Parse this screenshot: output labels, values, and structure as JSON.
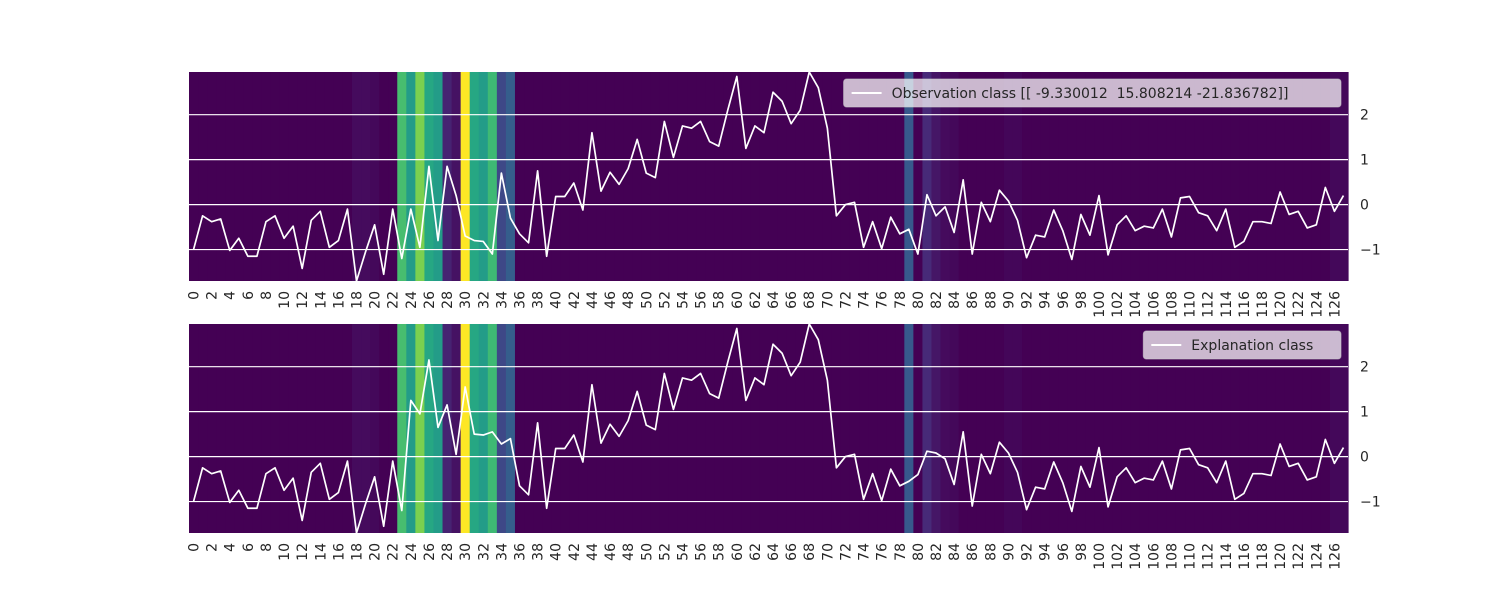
{
  "chart_data": [
    {
      "type": "line",
      "subtype": "line-over-heatmap",
      "panel": "top",
      "legend": {
        "label": "Observation class [[ -9.330012  15.808214 -21.836782]]",
        "location": "top-right"
      },
      "line_color": "#ffffff",
      "xlim": [
        0,
        128
      ],
      "ylim": [
        -1.7,
        2.95
      ],
      "yticks": [
        -1,
        0,
        1,
        2
      ],
      "ytick_labels": [
        "−1",
        "0",
        "1",
        "2"
      ],
      "xtick_step": 2,
      "grid": true,
      "series": [
        {
          "name": "Observation class [[ -9.330012  15.808214 -21.836782]]",
          "values": [
            -1.0,
            -0.25,
            -0.38,
            -0.32,
            -1.02,
            -0.75,
            -1.15,
            -1.15,
            -0.38,
            -0.25,
            -0.75,
            -0.48,
            -1.42,
            -0.35,
            -0.15,
            -0.95,
            -0.8,
            -0.1,
            -1.7,
            -1.05,
            -0.45,
            -1.55,
            -0.1,
            -1.2,
            -0.1,
            -0.95,
            0.85,
            -0.8,
            0.85,
            0.2,
            -0.7,
            -0.8,
            -0.82,
            -1.1,
            0.7,
            -0.3,
            -0.65,
            -0.85,
            0.75,
            -1.15,
            0.18,
            0.18,
            0.48,
            -0.12,
            1.6,
            0.3,
            0.72,
            0.45,
            0.8,
            1.45,
            0.7,
            0.6,
            1.85,
            1.05,
            1.75,
            1.7,
            1.85,
            1.4,
            1.3,
            2.1,
            2.85,
            1.25,
            1.75,
            1.6,
            2.5,
            2.3,
            1.8,
            2.1,
            2.95,
            2.6,
            1.7,
            -0.25,
            0.0,
            0.05,
            -0.95,
            -0.38,
            -0.98,
            -0.28,
            -0.65,
            -0.55,
            -1.1,
            0.22,
            -0.25,
            -0.05,
            -0.62,
            0.55,
            -1.1,
            0.05,
            -0.38,
            0.32,
            0.08,
            -0.35,
            -1.18,
            -0.68,
            -0.72,
            -0.12,
            -0.58,
            -1.22,
            -0.22,
            -0.68,
            0.2,
            -1.12,
            -0.45,
            -0.25,
            -0.58,
            -0.48,
            -0.52,
            -0.1,
            -0.72,
            0.15,
            0.18,
            -0.18,
            -0.25,
            -0.58,
            -0.1,
            -0.95,
            -0.82,
            -0.38,
            -0.38,
            -0.42,
            0.28,
            -0.22,
            -0.15,
            -0.52,
            -0.45,
            0.38,
            -0.15,
            0.2
          ]
        }
      ],
      "heatmap": {
        "colormap": "viridis",
        "default": 0,
        "cells": [
          [
            23,
            0.7
          ],
          [
            24,
            0.55
          ],
          [
            25,
            0.8
          ],
          [
            26,
            0.6
          ],
          [
            27,
            0.55
          ],
          [
            28,
            0.1
          ],
          [
            29,
            0.05
          ],
          [
            30,
            1.0
          ],
          [
            31,
            0.6
          ],
          [
            32,
            0.55
          ],
          [
            33,
            0.68
          ],
          [
            34,
            0.22
          ],
          [
            35,
            0.3
          ],
          [
            79,
            0.28
          ],
          [
            81,
            0.12
          ],
          [
            82,
            0.06
          ],
          [
            83,
            0.03
          ],
          [
            84,
            0.02
          ],
          [
            18,
            0.03
          ],
          [
            19,
            0.03
          ],
          [
            20,
            0.02
          ],
          [
            90,
            0.015
          ],
          [
            91,
            0.015
          ],
          [
            126,
            0.02
          ],
          [
            127,
            0.02
          ]
        ]
      }
    },
    {
      "type": "line",
      "subtype": "line-over-heatmap",
      "panel": "bottom",
      "legend": {
        "label": "Explanation class",
        "location": "top-right"
      },
      "line_color": "#ffffff",
      "xlim": [
        0,
        128
      ],
      "ylim": [
        -1.7,
        2.95
      ],
      "yticks": [
        -1,
        0,
        1,
        2
      ],
      "ytick_labels": [
        "−1",
        "0",
        "1",
        "2"
      ],
      "xtick_step": 2,
      "grid": true,
      "series": [
        {
          "name": "Explanation class",
          "values": [
            -1.0,
            -0.25,
            -0.38,
            -0.32,
            -1.02,
            -0.75,
            -1.15,
            -1.15,
            -0.38,
            -0.25,
            -0.75,
            -0.48,
            -1.42,
            -0.35,
            -0.15,
            -0.95,
            -0.8,
            -0.1,
            -1.7,
            -1.05,
            -0.45,
            -1.55,
            -0.1,
            -1.2,
            1.25,
            0.95,
            2.15,
            0.65,
            1.15,
            0.05,
            1.55,
            0.5,
            0.48,
            0.55,
            0.28,
            0.4,
            -0.65,
            -0.85,
            0.75,
            -1.15,
            0.18,
            0.18,
            0.48,
            -0.12,
            1.6,
            0.3,
            0.72,
            0.45,
            0.8,
            1.45,
            0.7,
            0.6,
            1.85,
            1.05,
            1.75,
            1.7,
            1.85,
            1.4,
            1.3,
            2.1,
            2.85,
            1.25,
            1.75,
            1.6,
            2.5,
            2.3,
            1.8,
            2.1,
            2.95,
            2.6,
            1.7,
            -0.25,
            0.0,
            0.05,
            -0.95,
            -0.38,
            -0.98,
            -0.28,
            -0.65,
            -0.55,
            -0.4,
            0.12,
            0.08,
            -0.05,
            -0.62,
            0.55,
            -1.1,
            0.05,
            -0.38,
            0.32,
            0.08,
            -0.35,
            -1.18,
            -0.68,
            -0.72,
            -0.12,
            -0.58,
            -1.22,
            -0.22,
            -0.68,
            0.2,
            -1.12,
            -0.45,
            -0.25,
            -0.58,
            -0.48,
            -0.52,
            -0.1,
            -0.72,
            0.15,
            0.18,
            -0.18,
            -0.25,
            -0.58,
            -0.1,
            -0.95,
            -0.82,
            -0.38,
            -0.38,
            -0.42,
            0.28,
            -0.22,
            -0.15,
            -0.52,
            -0.45,
            0.38,
            -0.15,
            0.2
          ]
        }
      ],
      "heatmap": {
        "colormap": "viridis",
        "default": 0,
        "cells": [
          [
            23,
            0.7
          ],
          [
            24,
            0.55
          ],
          [
            25,
            0.8
          ],
          [
            26,
            0.6
          ],
          [
            27,
            0.55
          ],
          [
            28,
            0.1
          ],
          [
            29,
            0.05
          ],
          [
            30,
            1.0
          ],
          [
            31,
            0.6
          ],
          [
            32,
            0.55
          ],
          [
            33,
            0.68
          ],
          [
            34,
            0.22
          ],
          [
            35,
            0.3
          ],
          [
            79,
            0.28
          ],
          [
            81,
            0.12
          ],
          [
            82,
            0.06
          ],
          [
            83,
            0.03
          ],
          [
            84,
            0.02
          ],
          [
            18,
            0.03
          ],
          [
            19,
            0.03
          ],
          [
            20,
            0.02
          ],
          [
            90,
            0.015
          ],
          [
            91,
            0.015
          ],
          [
            126,
            0.02
          ],
          [
            127,
            0.02
          ]
        ]
      }
    }
  ]
}
